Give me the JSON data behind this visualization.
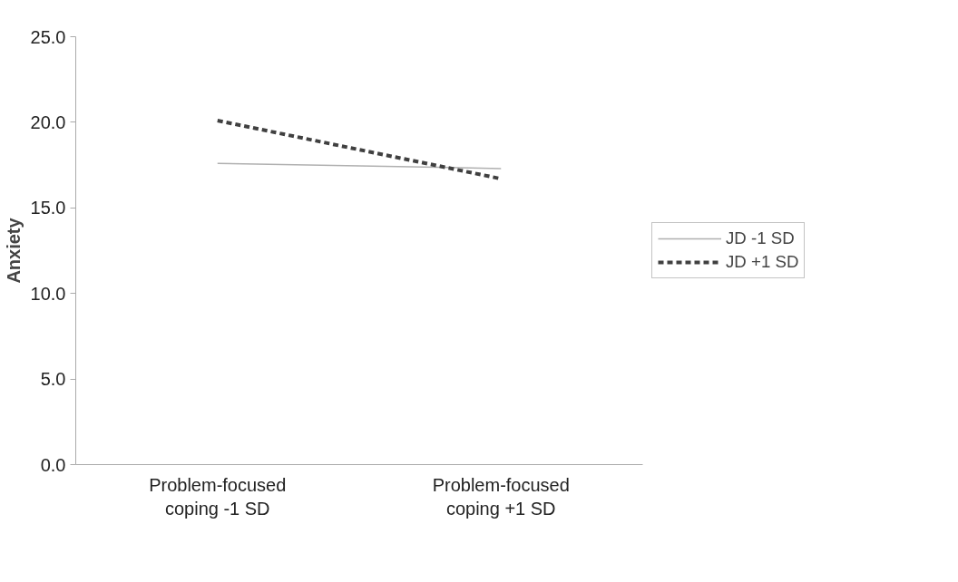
{
  "chart_data": {
    "type": "line",
    "ylabel": "Anxiety",
    "categories": [
      "Problem-focused\ncoping -1 SD",
      "Problem-focused\ncoping +1 SD"
    ],
    "series": [
      {
        "name": "JD -1 SD",
        "color": "#b0b0b0",
        "line_style": "solid",
        "values": [
          17.6,
          17.3
        ]
      },
      {
        "name": "JD +1 SD",
        "color": "#404040",
        "line_style": "dashed",
        "values": [
          20.1,
          16.7
        ]
      }
    ],
    "ylim": [
      0,
      25
    ],
    "yticks": [
      {
        "value": 0,
        "label": "0.0"
      },
      {
        "value": 5,
        "label": "5.0"
      },
      {
        "value": 10,
        "label": "10.0"
      },
      {
        "value": 15,
        "label": "15.0"
      },
      {
        "value": 20,
        "label": "20.0"
      },
      {
        "value": 25,
        "label": "25.0"
      }
    ],
    "grid": false,
    "legend": "right",
    "marker": "none"
  }
}
